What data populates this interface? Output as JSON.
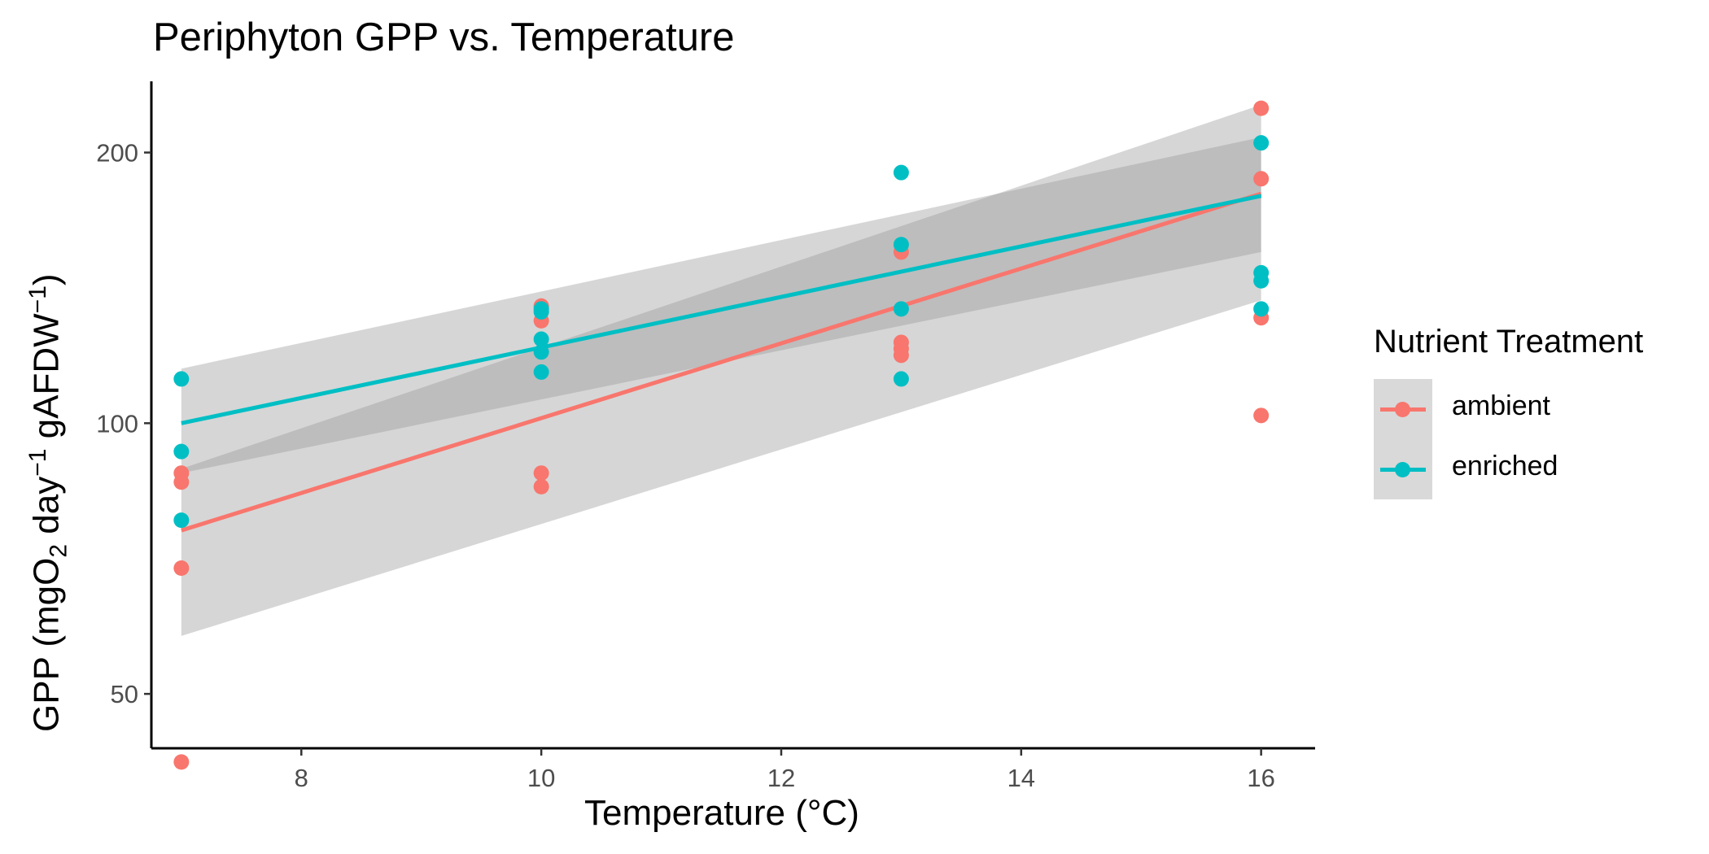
{
  "chart_data": {
    "type": "scatter",
    "title": "Periphyton GPP vs. Temperature",
    "xlabel": "Temperature (°C)",
    "ylabel": {
      "prefix": "GPP (mgO",
      "sub": "2",
      "mid1": " day",
      "sup1": "−1",
      "mid2": " gAFDW",
      "sup2": "−1",
      "suffix": ")"
    },
    "x_scale": "linear",
    "y_scale": "log",
    "xlim": [
      6.75,
      16.45
    ],
    "ylim": [
      43.5,
      240
    ],
    "x_ticks": [
      8,
      10,
      12,
      14,
      16
    ],
    "x_tick_labels": [
      "8",
      "10",
      "12",
      "14",
      "16"
    ],
    "y_ticks": [
      50,
      100,
      200
    ],
    "y_tick_labels": [
      "50",
      "100",
      "200"
    ],
    "legend": {
      "title": "Nutrient Treatment",
      "position": "right"
    },
    "series": [
      {
        "name": "ambient",
        "color": "#f8766d",
        "points": [
          [
            7,
            42
          ],
          [
            7,
            69
          ],
          [
            7,
            86
          ],
          [
            7,
            88
          ],
          [
            10,
            85
          ],
          [
            10,
            88
          ],
          [
            10,
            130
          ],
          [
            10,
            135
          ],
          [
            13,
            119
          ],
          [
            13,
            121
          ],
          [
            13,
            123
          ],
          [
            13,
            155
          ],
          [
            16,
            102
          ],
          [
            16,
            131
          ],
          [
            16,
            187
          ],
          [
            16,
            224
          ]
        ],
        "fit": {
          "x": [
            7,
            16
          ],
          "y": [
            76,
            180
          ]
        },
        "ci_lower": [
          58,
          137
        ],
        "ci_upper": [
          89,
          226
        ]
      },
      {
        "name": "enriched",
        "color": "#00bfc4",
        "points": [
          [
            7,
            78
          ],
          [
            7,
            93
          ],
          [
            7,
            112
          ],
          [
            10,
            114
          ],
          [
            10,
            120
          ],
          [
            10,
            124
          ],
          [
            10,
            133
          ],
          [
            10,
            134
          ],
          [
            13,
            112
          ],
          [
            13,
            134
          ],
          [
            13,
            158
          ],
          [
            13,
            190
          ],
          [
            16,
            134
          ],
          [
            16,
            144
          ],
          [
            16,
            147
          ],
          [
            16,
            205
          ]
        ],
        "fit": {
          "x": [
            7,
            16
          ],
          "y": [
            100,
            179
          ]
        },
        "ci_lower": [
          88,
          155
        ],
        "ci_upper": [
          115,
          208
        ]
      }
    ],
    "band_color": "#999999"
  }
}
